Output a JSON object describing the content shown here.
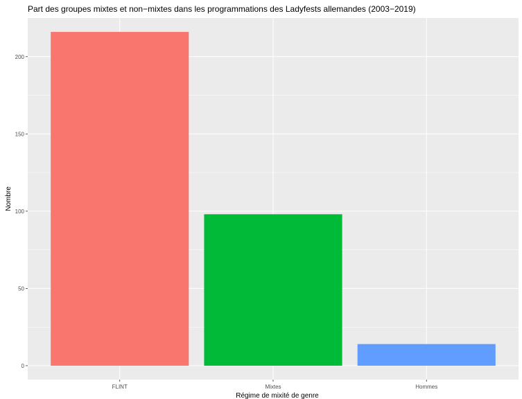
{
  "chart_data": {
    "type": "bar",
    "title": "Part des groupes mixtes et non−mixtes dans les programmations des Ladyfests allemandes (2003−2019)",
    "xlabel": "Régime de mixité de genre",
    "ylabel": "Nombre",
    "categories": [
      "FLINT",
      "Mixtes",
      "Hommes"
    ],
    "values": [
      216,
      98,
      14
    ],
    "colors": [
      "#F8766D",
      "#00BA38",
      "#619CFF"
    ],
    "ylim": [
      -9,
      225
    ],
    "yticks": [
      0,
      50,
      100,
      150,
      200
    ],
    "ytick_labels": [
      "0",
      "50",
      "100",
      "150",
      "200"
    ],
    "grid": true,
    "legend": "none",
    "panel_background": "#EBEBEB",
    "grid_color": "#FFFFFF"
  }
}
